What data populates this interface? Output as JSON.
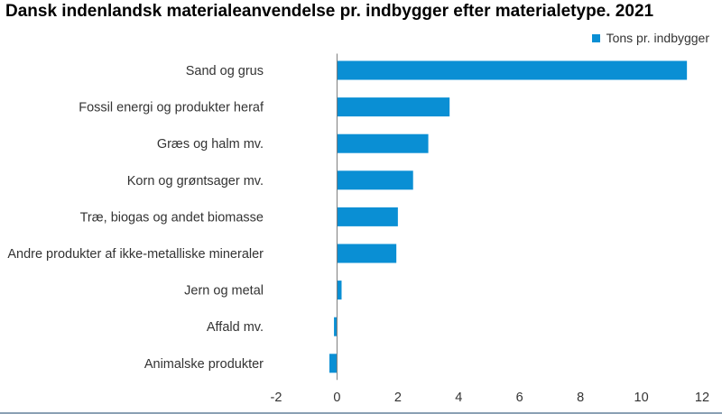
{
  "chart_data": {
    "type": "bar",
    "orientation": "horizontal",
    "title": "Dansk indenlandsk materialeanvendelse pr. indbygger efter materialetype. 2021",
    "categories": [
      "Sand og grus",
      "Fossil energi og produkter heraf",
      "Græs og halm mv.",
      "Korn og grøntsager mv.",
      "Træ, biogas og andet biomasse",
      "Andre produkter af ikke-metalliske mineraler",
      "Jern og metal",
      "Affald mv.",
      "Animalske produkter"
    ],
    "series": [
      {
        "name": "Tons pr. indbygger",
        "color": "#0a8fd4",
        "values": [
          11.5,
          3.7,
          3.0,
          2.5,
          2.0,
          1.95,
          0.15,
          -0.1,
          -0.25
        ]
      }
    ],
    "xlim": [
      -2,
      12
    ],
    "xticks": [
      "-2",
      "0",
      "2",
      "4",
      "6",
      "8",
      "10",
      "12"
    ],
    "xlabel": "",
    "ylabel": "",
    "grid": false,
    "legend_position": "top-right"
  }
}
